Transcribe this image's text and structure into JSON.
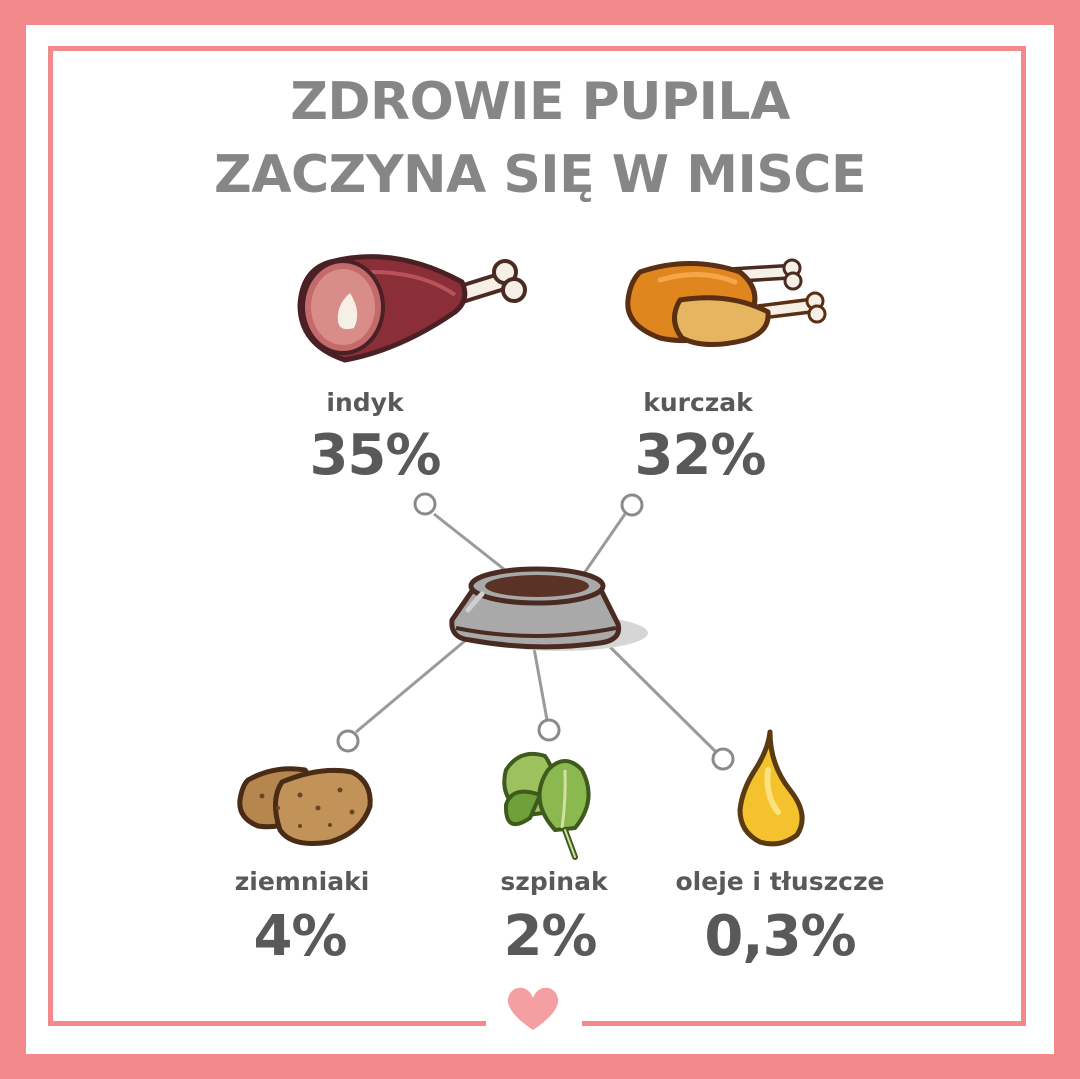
{
  "title": {
    "line1": "ZDROWIE PUPILA",
    "line2": "ZACZYNA SIĘ W MISCE"
  },
  "ingredients": [
    {
      "name": "indyk",
      "percent": "35%",
      "icon": "turkey-leg-icon"
    },
    {
      "name": "kurczak",
      "percent": "32%",
      "icon": "chicken-icon"
    },
    {
      "name": "ziemniaki",
      "percent": "4%",
      "icon": "potato-icon"
    },
    {
      "name": "szpinak",
      "percent": "2%",
      "icon": "spinach-icon"
    },
    {
      "name": "oleje i tłuszcze",
      "percent": "0,3%",
      "icon": "oil-drop-icon"
    }
  ],
  "colors": {
    "frame": "#f2898a",
    "title": "#868686",
    "text": "#595959",
    "connector": "#9a9a9a",
    "heart": "#f4a0a2"
  },
  "icons": {
    "bowl": "bowl-icon",
    "heart": "heart-icon"
  }
}
